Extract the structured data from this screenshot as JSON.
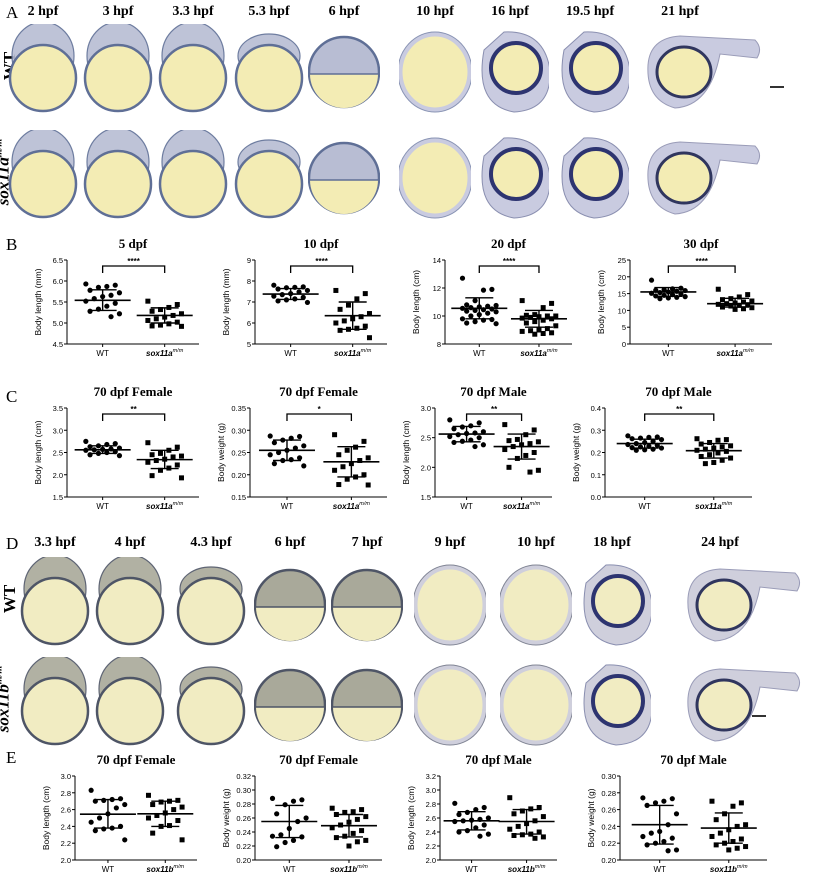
{
  "figure": {
    "panels": {
      "A": {
        "letter": "A",
        "stages": [
          "2 hpf",
          "3 hpf",
          "3.3 hpf",
          "5.3 hpf",
          "6 hpf",
          "10 hpf",
          "16 hpf",
          "19.5 hpf",
          "21 hpf"
        ],
        "rows": [
          {
            "label": "WT"
          },
          {
            "label_base": "sox11a",
            "label_sup": "m/m"
          }
        ],
        "colors": {
          "yolk": "#f3ecb4",
          "rim": "#5f6f96",
          "cells": "#b8bdd3",
          "tissue": "#c9cbe0"
        }
      },
      "B": {
        "letter": "B"
      },
      "C": {
        "letter": "C"
      },
      "D": {
        "letter": "D",
        "stages": [
          "3.3 hpf",
          "4 hpf",
          "4.3 hpf",
          "6 hpf",
          "7 hpf",
          "9 hpf",
          "10 hpf",
          "18 hpf",
          "24 hpf"
        ],
        "rows": [
          {
            "label": "WT"
          },
          {
            "label_base": "sox11b",
            "label_sup": "m/m"
          }
        ],
        "colors": {
          "yolk": "#f1ecc2",
          "rim": "#4e5566",
          "cells": "#a9a99a",
          "tissue": "#cfcfdc"
        }
      },
      "E": {
        "letter": "E"
      }
    }
  },
  "chart_data": [
    {
      "panel": "B",
      "type": "scatter",
      "title": "5 dpf",
      "ylabel": "Body length (mm)",
      "ylim": [
        4.5,
        6.5
      ],
      "yticks": [
        "4.5",
        "5.0",
        "5.5",
        "6.0",
        "6.5"
      ],
      "categories": [
        "WT",
        "sox11a m/m"
      ],
      "significance": "****",
      "series": [
        {
          "name": "WT",
          "marker": "circle",
          "mean": 5.54,
          "sd_low": 5.3,
          "sd_high": 5.79,
          "values": [
            5.93,
            5.9,
            5.87,
            5.85,
            5.78,
            5.72,
            5.66,
            5.63,
            5.58,
            5.52,
            5.47,
            5.4,
            5.33,
            5.28,
            5.22,
            5.15
          ]
        },
        {
          "name": "sox11a m/m",
          "marker": "square",
          "mean": 5.18,
          "sd_low": 5.0,
          "sd_high": 5.36,
          "values": [
            5.52,
            5.44,
            5.37,
            5.32,
            5.28,
            5.22,
            5.18,
            5.14,
            5.1,
            5.06,
            5.02,
            4.98,
            4.95,
            4.93,
            4.92
          ]
        }
      ]
    },
    {
      "panel": "B",
      "type": "scatter",
      "title": "10 dpf",
      "ylabel": "Body length (mm)",
      "ylim": [
        5,
        9
      ],
      "yticks": [
        "5",
        "6",
        "7",
        "8",
        "9"
      ],
      "categories": [
        "WT",
        "sox11a m/m"
      ],
      "significance": "****",
      "series": [
        {
          "name": "WT",
          "marker": "circle",
          "mean": 7.38,
          "sd_low": 7.12,
          "sd_high": 7.64,
          "values": [
            7.8,
            7.72,
            7.7,
            7.68,
            7.62,
            7.55,
            7.48,
            7.4,
            7.35,
            7.28,
            7.22,
            7.15,
            7.1,
            7.05,
            6.98
          ]
        },
        {
          "name": "sox11a m/m",
          "marker": "square",
          "mean": 6.35,
          "sd_low": 5.7,
          "sd_high": 7.0,
          "values": [
            7.55,
            7.4,
            7.15,
            6.85,
            6.65,
            6.45,
            6.3,
            6.2,
            6.1,
            6.0,
            5.85,
            5.75,
            5.7,
            5.65,
            5.3
          ]
        }
      ]
    },
    {
      "panel": "B",
      "type": "scatter",
      "title": "20 dpf",
      "ylabel": "Body length (cm)",
      "ylim": [
        8,
        14
      ],
      "yticks": [
        "8",
        "10",
        "12",
        "14"
      ],
      "categories": [
        "WT",
        "sox11a m/m"
      ],
      "significance": "****",
      "series": [
        {
          "name": "WT",
          "marker": "circle",
          "mean": 10.55,
          "sd_low": 9.8,
          "sd_high": 11.3,
          "values": [
            12.7,
            11.9,
            11.85,
            11.1,
            10.8,
            10.75,
            10.7,
            10.65,
            10.6,
            10.55,
            10.5,
            10.45,
            10.4,
            10.35,
            10.3,
            10.2,
            10.1,
            10.0,
            9.8,
            9.75,
            9.7,
            9.6,
            9.5,
            9.45
          ]
        },
        {
          "name": "sox11a m/m",
          "marker": "square",
          "mean": 9.8,
          "sd_low": 9.2,
          "sd_high": 10.4,
          "values": [
            11.1,
            10.9,
            10.6,
            10.1,
            10.05,
            10.0,
            10.0,
            9.95,
            9.9,
            9.85,
            9.8,
            9.7,
            9.6,
            9.5,
            9.3,
            9.1,
            9.0,
            8.95,
            8.9,
            8.8,
            8.75,
            8.7
          ]
        }
      ]
    },
    {
      "panel": "B",
      "type": "scatter",
      "title": "30 dpf",
      "ylabel": "Body length (cm)",
      "ylim": [
        0,
        25
      ],
      "yticks": [
        "0",
        "5",
        "10",
        "15",
        "20",
        "25"
      ],
      "categories": [
        "WT",
        "sox11a m/m"
      ],
      "significance": "****",
      "series": [
        {
          "name": "WT",
          "marker": "circle",
          "mean": 15.5,
          "sd_low": 14.2,
          "sd_high": 16.8,
          "values": [
            19.0,
            16.6,
            16.4,
            16.2,
            16.0,
            15.9,
            15.7,
            15.5,
            15.3,
            15.1,
            14.9,
            14.7,
            14.5,
            14.3,
            14.1,
            13.9,
            13.7,
            13.5
          ]
        },
        {
          "name": "sox11a m/m",
          "marker": "square",
          "mean": 12.0,
          "sd_low": 11.0,
          "sd_high": 13.6,
          "values": [
            16.3,
            14.7,
            14.0,
            13.5,
            13.2,
            12.8,
            12.5,
            12.2,
            12.0,
            11.8,
            11.7,
            11.5,
            11.3,
            11.0,
            10.8,
            10.5,
            10.3
          ]
        }
      ]
    },
    {
      "panel": "C",
      "type": "scatter",
      "title": "70 dpf Female",
      "ylabel": "Body length (cm)",
      "ylim": [
        1.5,
        3.5
      ],
      "yticks": [
        "1.5",
        "2.0",
        "2.5",
        "3.0",
        "3.5"
      ],
      "categories": [
        "WT",
        "sox11a m/m"
      ],
      "significance": "**",
      "series": [
        {
          "name": "WT",
          "marker": "circle",
          "mean": 2.56,
          "sd_low": 2.48,
          "sd_high": 2.65,
          "values": [
            2.75,
            2.7,
            2.68,
            2.65,
            2.63,
            2.6,
            2.58,
            2.57,
            2.56,
            2.55,
            2.52,
            2.5,
            2.48,
            2.45,
            2.43
          ]
        },
        {
          "name": "sox11a m/m",
          "marker": "square",
          "mean": 2.34,
          "sd_low": 2.14,
          "sd_high": 2.55,
          "values": [
            2.72,
            2.62,
            2.55,
            2.48,
            2.45,
            2.42,
            2.4,
            2.35,
            2.32,
            2.28,
            2.22,
            2.15,
            2.1,
            1.98,
            1.93
          ]
        }
      ]
    },
    {
      "panel": "C",
      "type": "scatter",
      "title": "70 dpf Female",
      "ylabel": "Body weight (g)",
      "ylim": [
        0.15,
        0.35
      ],
      "yticks": [
        "0.15",
        "0.20",
        "0.25",
        "0.30",
        "0.35"
      ],
      "categories": [
        "WT",
        "sox11a m/m"
      ],
      "significance": "*",
      "series": [
        {
          "name": "WT",
          "marker": "circle",
          "mean": 0.255,
          "sd_low": 0.232,
          "sd_high": 0.278,
          "values": [
            0.287,
            0.286,
            0.282,
            0.278,
            0.272,
            0.265,
            0.26,
            0.255,
            0.25,
            0.245,
            0.238,
            0.234,
            0.232,
            0.225,
            0.22
          ]
        },
        {
          "name": "sox11a m/m",
          "marker": "square",
          "mean": 0.229,
          "sd_low": 0.195,
          "sd_high": 0.263,
          "values": [
            0.29,
            0.275,
            0.262,
            0.255,
            0.245,
            0.238,
            0.232,
            0.225,
            0.218,
            0.21,
            0.2,
            0.195,
            0.19,
            0.178,
            0.177
          ]
        }
      ]
    },
    {
      "panel": "C",
      "type": "scatter",
      "title": "70 dpf Male",
      "ylabel": "Body length (cm)",
      "ylim": [
        1.5,
        3.0
      ],
      "yticks": [
        "1.5",
        "2.0",
        "2.5",
        "3.0"
      ],
      "categories": [
        "WT",
        "sox11a m/m"
      ],
      "significance": "**",
      "series": [
        {
          "name": "WT",
          "marker": "circle",
          "mean": 2.56,
          "sd_low": 2.43,
          "sd_high": 2.69,
          "values": [
            2.8,
            2.75,
            2.7,
            2.68,
            2.65,
            2.6,
            2.58,
            2.57,
            2.55,
            2.52,
            2.5,
            2.46,
            2.44,
            2.42,
            2.38,
            2.35
          ]
        },
        {
          "name": "sox11a m/m",
          "marker": "square",
          "mean": 2.35,
          "sd_low": 2.14,
          "sd_high": 2.56,
          "values": [
            2.72,
            2.63,
            2.55,
            2.47,
            2.45,
            2.43,
            2.4,
            2.38,
            2.35,
            2.3,
            2.25,
            2.2,
            2.15,
            2.0,
            1.95,
            1.92
          ]
        }
      ]
    },
    {
      "panel": "C",
      "type": "scatter",
      "title": "70 dpf Male",
      "ylabel": "Body weight (g)",
      "ylim": [
        0.0,
        0.4
      ],
      "yticks": [
        "0.0",
        "0.1",
        "0.2",
        "0.3",
        "0.4"
      ],
      "categories": [
        "WT",
        "sox11a m/m"
      ],
      "significance": "**",
      "series": [
        {
          "name": "WT",
          "marker": "circle",
          "mean": 0.24,
          "sd_low": 0.22,
          "sd_high": 0.26,
          "values": [
            0.275,
            0.27,
            0.268,
            0.265,
            0.262,
            0.258,
            0.25,
            0.245,
            0.24,
            0.236,
            0.232,
            0.228,
            0.225,
            0.222,
            0.22,
            0.215,
            0.212,
            0.21
          ]
        },
        {
          "name": "sox11a m/m",
          "marker": "square",
          "mean": 0.208,
          "sd_low": 0.175,
          "sd_high": 0.24,
          "values": [
            0.262,
            0.258,
            0.255,
            0.245,
            0.238,
            0.23,
            0.225,
            0.22,
            0.215,
            0.21,
            0.205,
            0.198,
            0.19,
            0.182,
            0.175,
            0.165,
            0.155,
            0.15
          ]
        }
      ]
    },
    {
      "panel": "E",
      "type": "scatter",
      "title": "70 dpf Female",
      "ylabel": "Body length (cm)",
      "ylim": [
        2.0,
        3.0
      ],
      "yticks": [
        "2.0",
        "2.2",
        "2.4",
        "2.6",
        "2.8",
        "3.0"
      ],
      "categories": [
        "WT",
        "sox11b m/m"
      ],
      "significance": "",
      "series": [
        {
          "name": "WT",
          "marker": "circle",
          "mean": 2.545,
          "sd_low": 2.38,
          "sd_high": 2.72,
          "values": [
            2.83,
            2.73,
            2.72,
            2.71,
            2.7,
            2.66,
            2.62,
            2.55,
            2.5,
            2.45,
            2.4,
            2.38,
            2.37,
            2.35,
            2.24
          ]
        },
        {
          "name": "sox11b m/m",
          "marker": "square",
          "mean": 2.55,
          "sd_low": 2.4,
          "sd_high": 2.7,
          "values": [
            2.77,
            2.71,
            2.7,
            2.69,
            2.66,
            2.63,
            2.6,
            2.56,
            2.53,
            2.5,
            2.47,
            2.41,
            2.4,
            2.32,
            2.24
          ]
        }
      ]
    },
    {
      "panel": "E",
      "type": "scatter",
      "title": "70 dpf Female",
      "ylabel": "Body weight (g)",
      "ylim": [
        0.2,
        0.32
      ],
      "yticks": [
        "0.20",
        "0.22",
        "0.24",
        "0.26",
        "0.28",
        "0.30",
        "0.32"
      ],
      "categories": [
        "WT",
        "sox11b m/m"
      ],
      "significance": "",
      "series": [
        {
          "name": "WT",
          "marker": "circle",
          "mean": 0.255,
          "sd_low": 0.232,
          "sd_high": 0.278,
          "values": [
            0.288,
            0.286,
            0.284,
            0.279,
            0.266,
            0.26,
            0.255,
            0.245,
            0.236,
            0.234,
            0.233,
            0.228,
            0.225,
            0.219
          ]
        },
        {
          "name": "sox11b m/m",
          "marker": "square",
          "mean": 0.249,
          "sd_low": 0.233,
          "sd_high": 0.265,
          "values": [
            0.274,
            0.272,
            0.269,
            0.268,
            0.265,
            0.262,
            0.258,
            0.254,
            0.25,
            0.246,
            0.242,
            0.238,
            0.234,
            0.232,
            0.228,
            0.226,
            0.22
          ]
        }
      ]
    },
    {
      "panel": "E",
      "type": "scatter",
      "title": "70 dpf Male",
      "ylabel": "Body length (cm)",
      "ylim": [
        2.0,
        3.2
      ],
      "yticks": [
        "2.0",
        "2.2",
        "2.4",
        "2.6",
        "2.8",
        "3.0",
        "3.2"
      ],
      "categories": [
        "WT",
        "sox11b m/m"
      ],
      "significance": "",
      "series": [
        {
          "name": "WT",
          "marker": "circle",
          "mean": 2.56,
          "sd_low": 2.43,
          "sd_high": 2.69,
          "values": [
            2.81,
            2.75,
            2.72,
            2.68,
            2.65,
            2.6,
            2.58,
            2.57,
            2.56,
            2.55,
            2.5,
            2.46,
            2.42,
            2.4,
            2.37,
            2.34
          ]
        },
        {
          "name": "sox11b m/m",
          "marker": "square",
          "mean": 2.55,
          "sd_low": 2.37,
          "sd_high": 2.72,
          "values": [
            2.89,
            2.75,
            2.73,
            2.7,
            2.66,
            2.62,
            2.56,
            2.52,
            2.48,
            2.44,
            2.4,
            2.37,
            2.36,
            2.35,
            2.33,
            2.31
          ]
        }
      ]
    },
    {
      "panel": "E",
      "type": "scatter",
      "title": "70 dpf Male",
      "ylabel": "Body weight (g)",
      "ylim": [
        0.2,
        0.3
      ],
      "yticks": [
        "0.20",
        "0.22",
        "0.24",
        "0.26",
        "0.28",
        "0.30"
      ],
      "categories": [
        "WT",
        "sox11b m/m"
      ],
      "significance": "",
      "series": [
        {
          "name": "WT",
          "marker": "circle",
          "mean": 0.242,
          "sd_low": 0.219,
          "sd_high": 0.265,
          "values": [
            0.274,
            0.273,
            0.27,
            0.268,
            0.265,
            0.255,
            0.242,
            0.234,
            0.232,
            0.228,
            0.226,
            0.222,
            0.22,
            0.218,
            0.212,
            0.211
          ]
        },
        {
          "name": "sox11b m/m",
          "marker": "square",
          "mean": 0.238,
          "sd_low": 0.22,
          "sd_high": 0.256,
          "values": [
            0.27,
            0.268,
            0.264,
            0.255,
            0.248,
            0.242,
            0.24,
            0.236,
            0.232,
            0.228,
            0.225,
            0.222,
            0.22,
            0.218,
            0.216,
            0.214,
            0.212
          ]
        }
      ]
    }
  ]
}
